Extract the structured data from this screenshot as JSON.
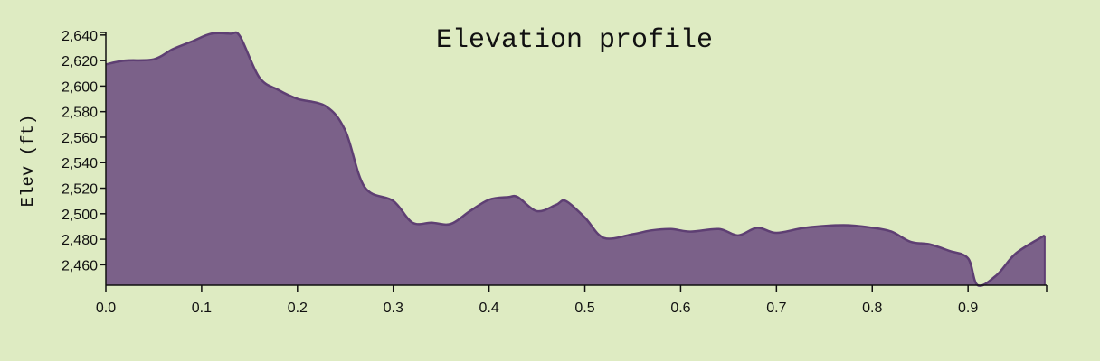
{
  "chart_data": {
    "type": "area",
    "title": "Elevation profile",
    "xlabel": "",
    "ylabel": "Elev (ft)",
    "xlim": [
      0,
      0.982
    ],
    "ylim": [
      2444,
      2642
    ],
    "xticks": [
      0.0,
      0.1,
      0.2,
      0.3,
      0.4,
      0.5,
      0.6,
      0.7,
      0.8,
      0.9
    ],
    "xtick_labels": [
      "0.0",
      "0.1",
      "0.2",
      "0.3",
      "0.4",
      "0.5",
      "0.6",
      "0.7",
      "0.8",
      "0.9"
    ],
    "yticks": [
      2460,
      2480,
      2500,
      2520,
      2540,
      2560,
      2580,
      2600,
      2620,
      2640
    ],
    "ytick_labels": [
      "2,460",
      "2,480",
      "2,500",
      "2,520",
      "2,540",
      "2,560",
      "2,580",
      "2,600",
      "2,620",
      "2,640"
    ],
    "grid": false,
    "colors": {
      "fill": "#7b6189",
      "stroke": "#5e3f73"
    },
    "x": [
      0.0,
      0.02,
      0.05,
      0.07,
      0.09,
      0.11,
      0.13,
      0.14,
      0.16,
      0.18,
      0.2,
      0.23,
      0.25,
      0.27,
      0.3,
      0.32,
      0.34,
      0.36,
      0.38,
      0.4,
      0.42,
      0.43,
      0.45,
      0.47,
      0.48,
      0.5,
      0.52,
      0.55,
      0.57,
      0.59,
      0.61,
      0.64,
      0.66,
      0.68,
      0.7,
      0.73,
      0.77,
      0.8,
      0.82,
      0.84,
      0.86,
      0.88,
      0.9,
      0.91,
      0.93,
      0.95,
      0.98
    ],
    "values": [
      2617,
      2620,
      2621,
      2629,
      2635,
      2641,
      2641,
      2639,
      2607,
      2597,
      2590,
      2584,
      2565,
      2521,
      2510,
      2493,
      2493,
      2492,
      2502,
      2511,
      2513,
      2513,
      2502,
      2507,
      2510,
      2497,
      2481,
      2484,
      2487,
      2488,
      2486,
      2488,
      2483,
      2489,
      2485,
      2489,
      2491,
      2489,
      2486,
      2478,
      2476,
      2471,
      2465,
      2444,
      2452,
      2469,
      2483
    ]
  }
}
